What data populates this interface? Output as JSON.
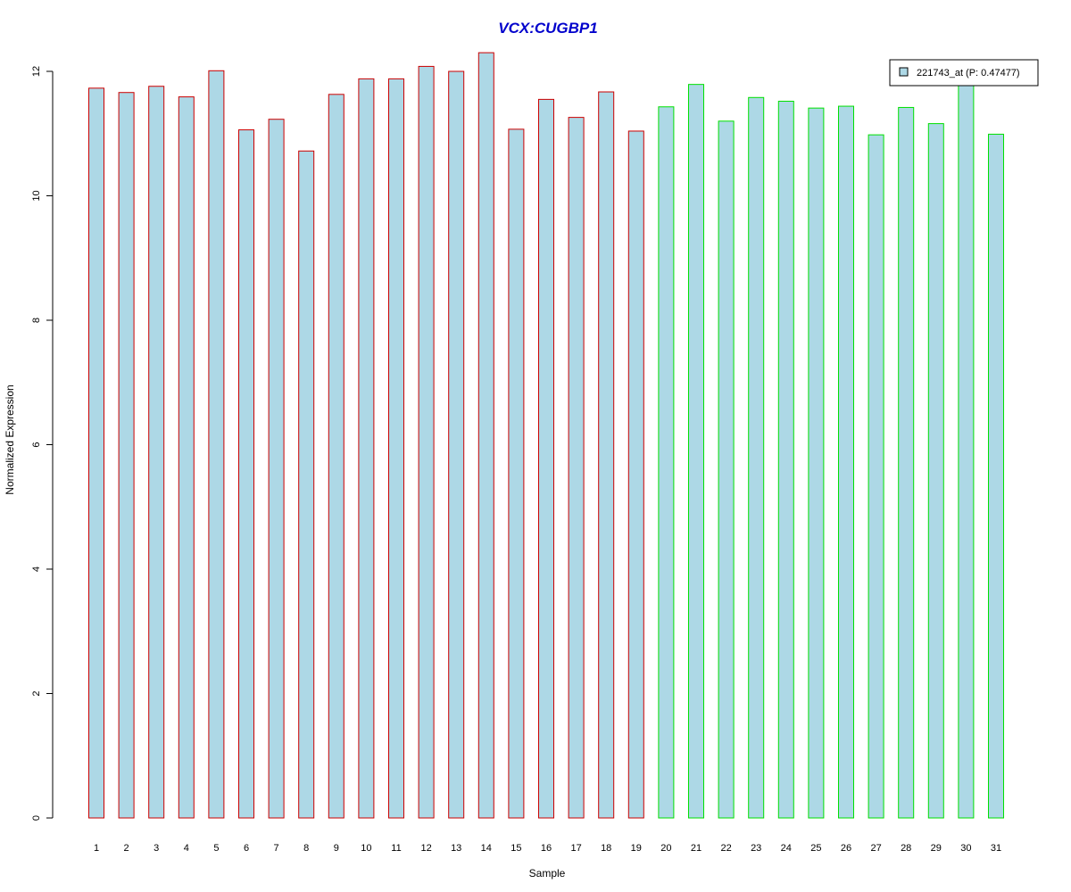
{
  "chart_data": {
    "type": "bar",
    "title": "VCX:CUGBP1",
    "xlabel": "Sample",
    "ylabel": "Normalized Expression",
    "ylim": [
      0,
      12
    ],
    "yticks": [
      "0",
      "2",
      "4",
      "6",
      "8",
      "10",
      "12"
    ],
    "categories": [
      "1",
      "2",
      "3",
      "4",
      "5",
      "6",
      "7",
      "8",
      "9",
      "10",
      "11",
      "12",
      "13",
      "14",
      "15",
      "16",
      "17",
      "18",
      "19",
      "20",
      "21",
      "22",
      "23",
      "24",
      "25",
      "26",
      "27",
      "28",
      "29",
      "30",
      "31"
    ],
    "series": [
      {
        "name": "221743_at (P: 0.47477)",
        "values": [
          11.73,
          11.66,
          11.76,
          11.59,
          12.01,
          11.06,
          11.23,
          10.72,
          11.63,
          11.88,
          11.88,
          12.08,
          12.0,
          12.3,
          11.07,
          11.55,
          11.26,
          11.67,
          11.04,
          11.43,
          11.79,
          11.2,
          11.58,
          11.52,
          11.41,
          11.44,
          10.98,
          11.42,
          11.16,
          11.83,
          10.99
        ]
      }
    ],
    "bar_groups": [
      {
        "from": 1,
        "to": 19,
        "border_color": "#cc0000"
      },
      {
        "from": 20,
        "to": 31,
        "border_color": "#00e000"
      }
    ],
    "bar_fill": "#add8e6",
    "title_color": "#0000cc",
    "legend_position": "top-right",
    "grid": false
  }
}
